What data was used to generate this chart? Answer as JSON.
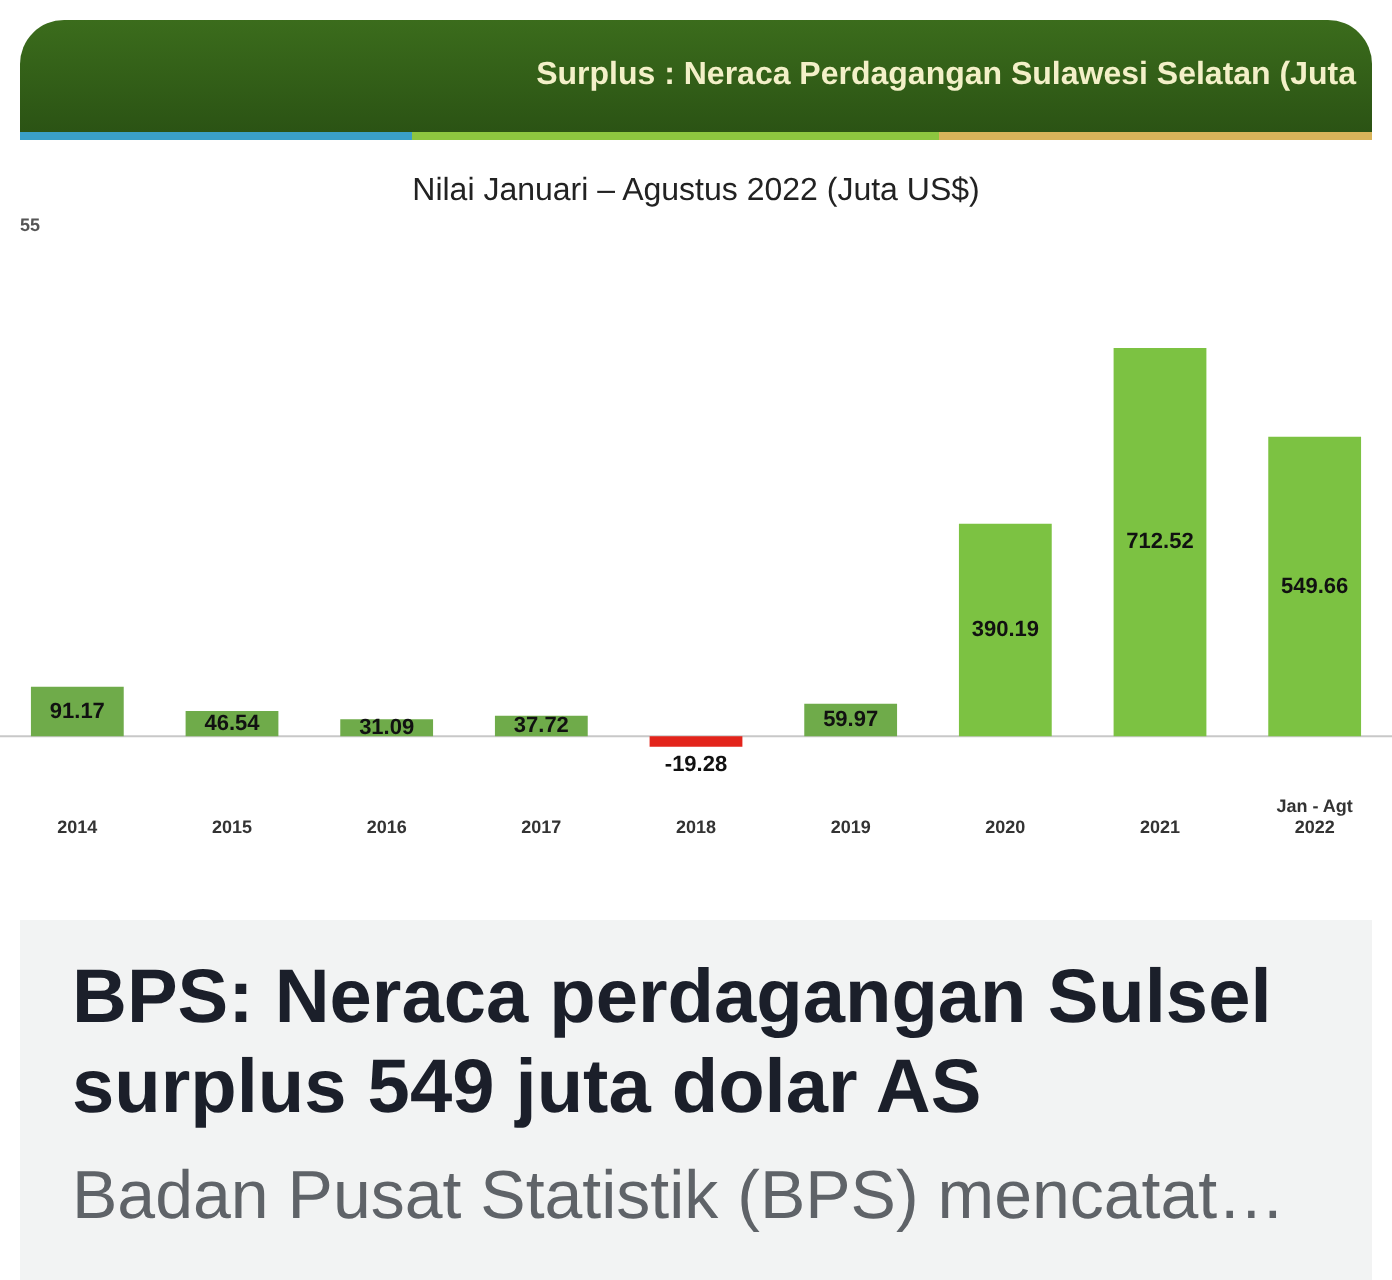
{
  "chart_data": {
    "type": "bar",
    "title": "Surplus : Neraca Perdagangan Sulawesi Selatan (Juta",
    "subtitle": "Nilai Januari – Agustus 2022 (Juta US$)",
    "categories": [
      "2014",
      "2015",
      "2016",
      "2017",
      "2018",
      "2019",
      "2020",
      "2021",
      "Jan - Agt\n2022"
    ],
    "values": [
      91.17,
      46.54,
      31.09,
      37.72,
      -19.28,
      59.97,
      390.19,
      712.52,
      549.66
    ],
    "colors": [
      "#6fab4a",
      "#6fab4a",
      "#6fab4a",
      "#6fab4a",
      "#e3241b",
      "#6fab4a",
      "#7cc242",
      "#7cc242",
      "#7cc242"
    ],
    "data_labels": true,
    "tick_labels": "x",
    "grid": false,
    "legend": false,
    "annotations": [
      "55",
      "BPS: Neraca perdagangan Sulsel surplus 549 juta dolar AS",
      "Badan Pusat Statistik (BPS) mencatat…"
    ]
  }
}
